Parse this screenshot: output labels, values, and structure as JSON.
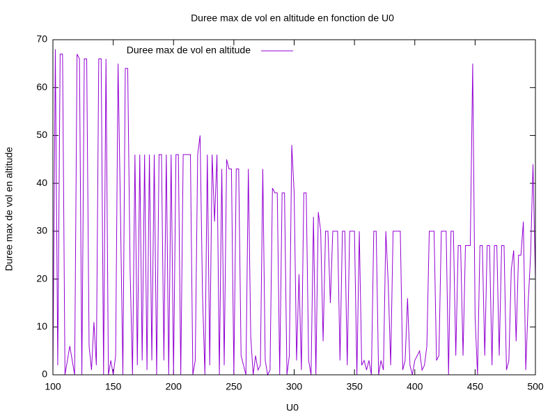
{
  "chart_data": {
    "type": "line",
    "title": "Duree max de vol en altitude en fonction de U0",
    "xlabel": "U0",
    "ylabel": "Duree max de vol en altitude",
    "xlim": [
      100,
      500
    ],
    "ylim": [
      0,
      70
    ],
    "xticks": [
      100,
      150,
      200,
      250,
      300,
      350,
      400,
      450,
      500
    ],
    "yticks": [
      0,
      10,
      20,
      30,
      40,
      50,
      60,
      70
    ],
    "legend": "top-left",
    "x": [
      100,
      102,
      104,
      106,
      108,
      110,
      112,
      114,
      116,
      118,
      120,
      122,
      124,
      126,
      128,
      130,
      132,
      134,
      136,
      138,
      140,
      142,
      144,
      146,
      148,
      150,
      152,
      154,
      156,
      158,
      160,
      162,
      164,
      166,
      168,
      170,
      172,
      174,
      176,
      178,
      180,
      182,
      184,
      186,
      188,
      190,
      192,
      194,
      196,
      198,
      200,
      202,
      204,
      206,
      208,
      210,
      212,
      214,
      216,
      218,
      220,
      222,
      224,
      226,
      228,
      230,
      232,
      234,
      236,
      238,
      240,
      242,
      244,
      246,
      248,
      250,
      252,
      254,
      256,
      258,
      260,
      262,
      264,
      266,
      268,
      270,
      272,
      274,
      276,
      278,
      280,
      282,
      284,
      286,
      288,
      290,
      292,
      294,
      296,
      298,
      300,
      302,
      304,
      306,
      308,
      310,
      312,
      314,
      316,
      318,
      320,
      322,
      324,
      326,
      328,
      330,
      332,
      334,
      336,
      338,
      340,
      342,
      344,
      346,
      348,
      350,
      352,
      354,
      356,
      358,
      360,
      362,
      364,
      366,
      368,
      370,
      372,
      374,
      376,
      378,
      380,
      382,
      384,
      386,
      388,
      390,
      392,
      394,
      396,
      398,
      400,
      402,
      404,
      406,
      408,
      410,
      412,
      414,
      416,
      418,
      420,
      422,
      424,
      426,
      428,
      430,
      432,
      434,
      436,
      438,
      440,
      442,
      444,
      446,
      448,
      450,
      452,
      454,
      456,
      458,
      460,
      462,
      464,
      466,
      468,
      470,
      472,
      474,
      476,
      478,
      480,
      482,
      484,
      486,
      488,
      490,
      492,
      494,
      496,
      498,
      500
    ],
    "series": [
      {
        "name": "Duree max de vol en altitude",
        "color": "#9400d3",
        "values": [
          0,
          68,
          2,
          67,
          67,
          0,
          3,
          6,
          3,
          0,
          67,
          66,
          0,
          66,
          66,
          6,
          1,
          11,
          2,
          66,
          66,
          0,
          66,
          0,
          3,
          0,
          4,
          65,
          34,
          0,
          64,
          64,
          22,
          0,
          46,
          2,
          46,
          3,
          46,
          1,
          46,
          3,
          46,
          0,
          46,
          46,
          3,
          46,
          0,
          46,
          0,
          46,
          46,
          0,
          46,
          46,
          46,
          46,
          0,
          3,
          46,
          50,
          17,
          0,
          46,
          2,
          46,
          32,
          46,
          0,
          43,
          2,
          45,
          43,
          43,
          0,
          43,
          43,
          4,
          2,
          0,
          43,
          8,
          0,
          4,
          1,
          2,
          43,
          3,
          0,
          1,
          39,
          38,
          38,
          0,
          38,
          38,
          0,
          4,
          48,
          38,
          3,
          21,
          1,
          38,
          38,
          3,
          0,
          33,
          0,
          34,
          30,
          7,
          30,
          30,
          15,
          30,
          30,
          30,
          3,
          30,
          30,
          2,
          30,
          30,
          30,
          0,
          30,
          2,
          3,
          1,
          3,
          0,
          30,
          30,
          0,
          3,
          1,
          30,
          19,
          2,
          30,
          30,
          30,
          30,
          1,
          3,
          16,
          2,
          0,
          3,
          4,
          5,
          1,
          2,
          6,
          30,
          30,
          30,
          3,
          4,
          30,
          30,
          30,
          0,
          30,
          30,
          4,
          27,
          27,
          4,
          27,
          27,
          27,
          65,
          12,
          0,
          27,
          27,
          4,
          27,
          27,
          2,
          27,
          27,
          4,
          27,
          27,
          1,
          3,
          22,
          26,
          7,
          25,
          25,
          32,
          1,
          15,
          25,
          44,
          20
        ]
      }
    ]
  }
}
